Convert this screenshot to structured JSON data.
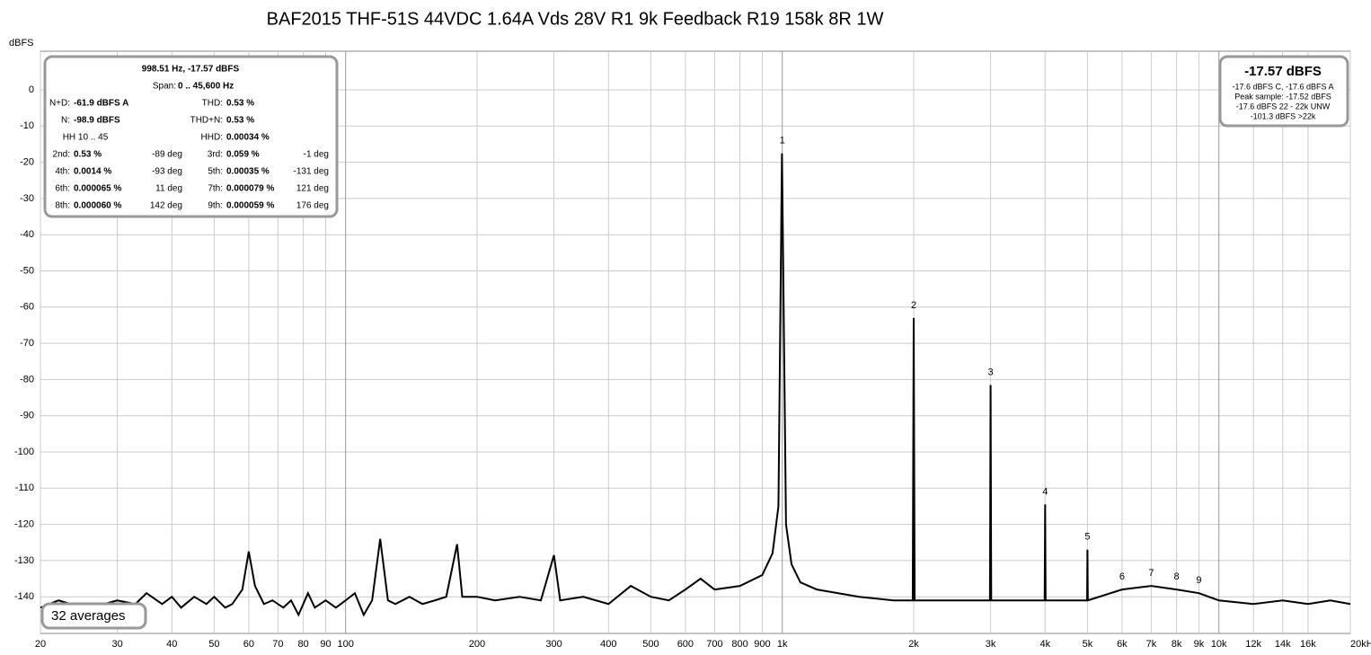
{
  "chart_data": {
    "type": "line",
    "title": "BAF2015 THF-51S 44VDC 1.64A Vds 28V R1 9k Feedback R19 158k 8R 1W",
    "y_label": "dBFS",
    "log_x": true,
    "grid": true,
    "color": "#000000",
    "xlim": [
      20,
      20000
    ],
    "ylim": [
      -150,
      10
    ],
    "yticks": [
      0,
      -10,
      -20,
      -30,
      -40,
      -50,
      -60,
      -70,
      -80,
      -90,
      -100,
      -110,
      -120,
      -130,
      -140
    ],
    "xticks": [
      20,
      30,
      40,
      50,
      60,
      70,
      80,
      90,
      100,
      200,
      300,
      400,
      500,
      600,
      700,
      800,
      900,
      {
        "value": 1000,
        "label": "1k"
      },
      {
        "value": 2000,
        "label": "2k"
      },
      {
        "value": 3000,
        "label": "3k"
      },
      {
        "value": 4000,
        "label": "4k"
      },
      {
        "value": 5000,
        "label": "5k"
      },
      {
        "value": 6000,
        "label": "6k"
      },
      {
        "value": 7000,
        "label": "7k"
      },
      {
        "value": 8000,
        "label": "8k"
      },
      {
        "value": 9000,
        "label": "9k"
      },
      {
        "value": 10000,
        "label": "10k"
      },
      {
        "value": 12000,
        "label": "12k"
      },
      {
        "value": 14000,
        "label": "14k"
      },
      {
        "value": 16000,
        "label": "16k"
      },
      {
        "value": 20000,
        "label": "20kHz"
      }
    ],
    "x": [
      20,
      22,
      25,
      28,
      30,
      33,
      35,
      38,
      40,
      42,
      45,
      48,
      50,
      53,
      55,
      58,
      60,
      62,
      65,
      68,
      72,
      75,
      78,
      82,
      85,
      90,
      95,
      100,
      105,
      110,
      115,
      120,
      125,
      130,
      140,
      150,
      160,
      170,
      180,
      185,
      200,
      220,
      250,
      280,
      300,
      310,
      350,
      400,
      450,
      500,
      550,
      600,
      650,
      700,
      800,
      900,
      950,
      980,
      998.51,
      1020,
      1050,
      1100,
      1200,
      1500,
      1800,
      1990,
      2000,
      2010,
      2500,
      2990,
      3000,
      3010,
      3500,
      3990,
      4000,
      4010,
      4500,
      4990,
      5000,
      5010,
      6000,
      7000,
      8000,
      9000,
      10000,
      12000,
      14000,
      16000,
      18000,
      20000
    ],
    "values": [
      -143,
      -141,
      -143,
      -142,
      -141,
      -142,
      -139,
      -142,
      -140,
      -143,
      -140,
      -142,
      -140,
      -143,
      -142,
      -138,
      -127.5,
      -137,
      -142,
      -141,
      -143,
      -141,
      -145,
      -139,
      -143,
      -141,
      -143,
      -141,
      -139,
      -145,
      -141,
      -124,
      -141,
      -142,
      -140,
      -142,
      -141,
      -140,
      -125.5,
      -140,
      -140,
      -141,
      -140,
      -141,
      -128.5,
      -141,
      -140,
      -142,
      -137,
      -140,
      -141,
      -138,
      -135,
      -138,
      -137,
      -134,
      -128,
      -115,
      -17.57,
      -120,
      -131,
      -136,
      -138,
      -140,
      -141,
      -141,
      -63,
      -141,
      -141,
      -141,
      -81.5,
      -141,
      -141,
      -141,
      -114.5,
      -141,
      -141,
      -141,
      -127,
      -141,
      -138,
      -137,
      -138,
      -139,
      -141,
      -142,
      -141,
      -142,
      -141,
      -142
    ],
    "harmonics": [
      {
        "label": "1",
        "x": 1000,
        "y": -17.57
      },
      {
        "label": "2",
        "x": 2000,
        "y": -63
      },
      {
        "label": "3",
        "x": 3000,
        "y": -81.5
      },
      {
        "label": "4",
        "x": 4000,
        "y": -114.5
      },
      {
        "label": "5",
        "x": 5000,
        "y": -127
      },
      {
        "label": "6",
        "x": 6000,
        "y": -138
      },
      {
        "label": "7",
        "x": 7000,
        "y": -137
      },
      {
        "label": "8",
        "x": 8000,
        "y": -138
      },
      {
        "label": "9",
        "x": 9000,
        "y": -139
      }
    ],
    "info_table": [
      [
        "998.51 Hz, -17.57 dBFS"
      ],
      [
        "Span:",
        "0 .. 45,600 Hz"
      ],
      [
        "N+D:",
        "-61.9 dBFS A",
        "THD:",
        "0.53 %"
      ],
      [
        "N:",
        "-98.9 dBFS",
        "THD+N:",
        "0.53 %"
      ],
      [
        "HH 10 .. 45",
        "HHD:",
        "0.00034 %"
      ],
      [
        "2nd:",
        "0.53 %",
        "-89 deg",
        "3rd:",
        "0.059 %",
        "-1 deg"
      ],
      [
        "4th:",
        "0.0014 %",
        "-93 deg",
        "5th:",
        "0.00035 %",
        "-131 deg"
      ],
      [
        "6th:",
        "0.000065 %",
        "11 deg",
        "7th:",
        "0.000079 %",
        "121 deg"
      ],
      [
        "8th:",
        "0.000060 %",
        "142 deg",
        "9th:",
        "0.000059 %",
        "176 deg"
      ]
    ],
    "level_box": [
      "-17.57 dBFS",
      "-17.6 dBFS C, -17.6 dBFS A",
      "Peak sample: -17.52 dBFS",
      "-17.6 dBFS 22 - 22k UNW",
      "-101.3 dBFS >22k"
    ],
    "averages": "32 averages"
  }
}
